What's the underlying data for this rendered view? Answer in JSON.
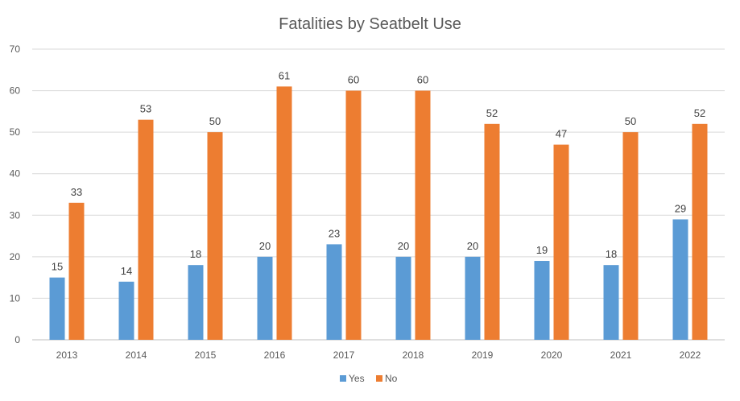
{
  "chart_data": {
    "type": "bar",
    "title": "Fatalities by Seatbelt Use",
    "xlabel": "",
    "ylabel": "",
    "categories": [
      "2013",
      "2014",
      "2015",
      "2016",
      "2017",
      "2018",
      "2019",
      "2020",
      "2021",
      "2022"
    ],
    "series": [
      {
        "name": "Yes",
        "color": "#5b9bd5",
        "values": [
          15,
          14,
          18,
          20,
          23,
          20,
          20,
          19,
          18,
          29
        ]
      },
      {
        "name": "No",
        "color": "#ed7d31",
        "values": [
          33,
          53,
          50,
          61,
          60,
          60,
          52,
          47,
          50,
          52
        ]
      }
    ],
    "ylim": [
      0,
      70
    ],
    "yticks": [
      "0",
      "10",
      "20",
      "30",
      "40",
      "50",
      "60",
      "70"
    ],
    "grid": true,
    "legend_position": "bottom",
    "data_labels": true
  }
}
